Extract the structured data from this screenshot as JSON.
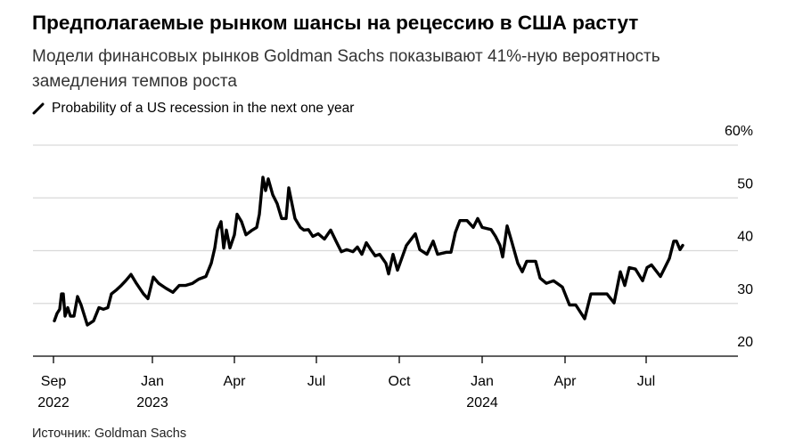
{
  "header": {
    "title": "Предполагаемые рынком шансы на рецессию в США растут",
    "subtitle": "Модели финансовых рынков Goldman Sachs показывают 41%-ную вероятность замедления темпов роста"
  },
  "footer": {
    "source": "Источник: Goldman Sachs"
  },
  "colors": {
    "line": "#000000",
    "grid": "#d9d9d9",
    "axis": "#000000"
  },
  "chart_data": {
    "type": "line",
    "title": "Предполагаемые рынком шансы на рецессию в США растут",
    "xlabel": "",
    "ylabel": "",
    "x_unit": "days since Sep 2022 tick",
    "ylim": [
      20,
      60
    ],
    "yticks": [
      {
        "value": 20,
        "label": "20"
      },
      {
        "value": 30,
        "label": "30"
      },
      {
        "value": 40,
        "label": "40"
      },
      {
        "value": 50,
        "label": "50"
      },
      {
        "value": 60,
        "label": "60%"
      }
    ],
    "xticks": [
      {
        "day": 0,
        "label": "Sep",
        "year": "2022"
      },
      {
        "day": 111,
        "label": "Jan",
        "year": "2023"
      },
      {
        "day": 203,
        "label": "Apr",
        "year": ""
      },
      {
        "day": 295,
        "label": "Jul",
        "year": ""
      },
      {
        "day": 388,
        "label": "Oct",
        "year": ""
      },
      {
        "day": 481,
        "label": "Jan",
        "year": "2024"
      },
      {
        "day": 574,
        "label": "Apr",
        "year": ""
      },
      {
        "day": 665,
        "label": "Jul",
        "year": ""
      }
    ],
    "xlim": [
      -23,
      768
    ],
    "grid": true,
    "legend": "top-left",
    "series": [
      {
        "name": "Probability of a US recession in the next one year",
        "points": [
          [
            1,
            26.7
          ],
          [
            4,
            28.1
          ],
          [
            7,
            28.9
          ],
          [
            9,
            31.8
          ],
          [
            11,
            31.8
          ],
          [
            13,
            27.6
          ],
          [
            16,
            29.2
          ],
          [
            19,
            27.6
          ],
          [
            23,
            27.6
          ],
          [
            27,
            31.3
          ],
          [
            31,
            29.7
          ],
          [
            38,
            25.9
          ],
          [
            45,
            26.7
          ],
          [
            51,
            29.2
          ],
          [
            56,
            28.9
          ],
          [
            61,
            29.2
          ],
          [
            65,
            31.8
          ],
          [
            71,
            32.6
          ],
          [
            76,
            33.4
          ],
          [
            81,
            34.3
          ],
          [
            87,
            35.5
          ],
          [
            93,
            33.8
          ],
          [
            101,
            31.8
          ],
          [
            106,
            30.9
          ],
          [
            112,
            35.0
          ],
          [
            118,
            33.8
          ],
          [
            126,
            32.9
          ],
          [
            134,
            32.1
          ],
          [
            141,
            33.4
          ],
          [
            148,
            33.4
          ],
          [
            156,
            33.8
          ],
          [
            163,
            34.6
          ],
          [
            171,
            35.1
          ],
          [
            177,
            37.6
          ],
          [
            181,
            40.5
          ],
          [
            184,
            43.9
          ],
          [
            188,
            45.5
          ],
          [
            191,
            40.5
          ],
          [
            194,
            43.9
          ],
          [
            198,
            40.5
          ],
          [
            203,
            43.0
          ],
          [
            206,
            46.9
          ],
          [
            211,
            45.5
          ],
          [
            216,
            43.0
          ],
          [
            223,
            43.9
          ],
          [
            228,
            44.4
          ],
          [
            231,
            46.9
          ],
          [
            235,
            53.9
          ],
          [
            238,
            51.4
          ],
          [
            241,
            53.6
          ],
          [
            246,
            50.6
          ],
          [
            251,
            48.9
          ],
          [
            256,
            46.1
          ],
          [
            261,
            46.1
          ],
          [
            264,
            51.9
          ],
          [
            267,
            49.4
          ],
          [
            271,
            46.1
          ],
          [
            277,
            44.4
          ],
          [
            281,
            43.9
          ],
          [
            286,
            44.0
          ],
          [
            291,
            42.7
          ],
          [
            297,
            43.2
          ],
          [
            304,
            42.2
          ],
          [
            311,
            43.9
          ],
          [
            317,
            41.8
          ],
          [
            323,
            39.8
          ],
          [
            329,
            40.2
          ],
          [
            336,
            39.8
          ],
          [
            341,
            40.7
          ],
          [
            346,
            39.3
          ],
          [
            351,
            41.5
          ],
          [
            356,
            40.2
          ],
          [
            361,
            39.0
          ],
          [
            366,
            39.3
          ],
          [
            373,
            37.6
          ],
          [
            376,
            35.6
          ],
          [
            381,
            39.3
          ],
          [
            386,
            36.3
          ],
          [
            396,
            41.0
          ],
          [
            406,
            43.2
          ],
          [
            411,
            40.2
          ],
          [
            419,
            39.3
          ],
          [
            426,
            41.8
          ],
          [
            431,
            39.3
          ],
          [
            441,
            39.7
          ],
          [
            446,
            39.7
          ],
          [
            451,
            43.5
          ],
          [
            456,
            45.7
          ],
          [
            464,
            45.7
          ],
          [
            471,
            44.4
          ],
          [
            476,
            46.1
          ],
          [
            481,
            44.4
          ],
          [
            491,
            44.0
          ],
          [
            496,
            42.7
          ],
          [
            501,
            41.0
          ],
          [
            504,
            38.8
          ],
          [
            509,
            44.7
          ],
          [
            514,
            41.8
          ],
          [
            521,
            37.6
          ],
          [
            526,
            36.0
          ],
          [
            531,
            38.0
          ],
          [
            541,
            38.0
          ],
          [
            546,
            34.8
          ],
          [
            553,
            33.8
          ],
          [
            561,
            34.3
          ],
          [
            571,
            33.1
          ],
          [
            579,
            29.7
          ],
          [
            586,
            29.7
          ],
          [
            596,
            27.1
          ],
          [
            603,
            31.8
          ],
          [
            609,
            31.8
          ],
          [
            621,
            31.8
          ],
          [
            629,
            30.1
          ],
          [
            636,
            36.0
          ],
          [
            641,
            33.4
          ],
          [
            646,
            36.8
          ],
          [
            653,
            36.5
          ],
          [
            661,
            34.3
          ],
          [
            666,
            36.8
          ],
          [
            671,
            37.3
          ],
          [
            681,
            35.1
          ],
          [
            686,
            36.8
          ],
          [
            691,
            38.5
          ],
          [
            696,
            41.8
          ],
          [
            699,
            41.8
          ],
          [
            703,
            40.2
          ],
          [
            706,
            41.0
          ]
        ]
      }
    ]
  }
}
